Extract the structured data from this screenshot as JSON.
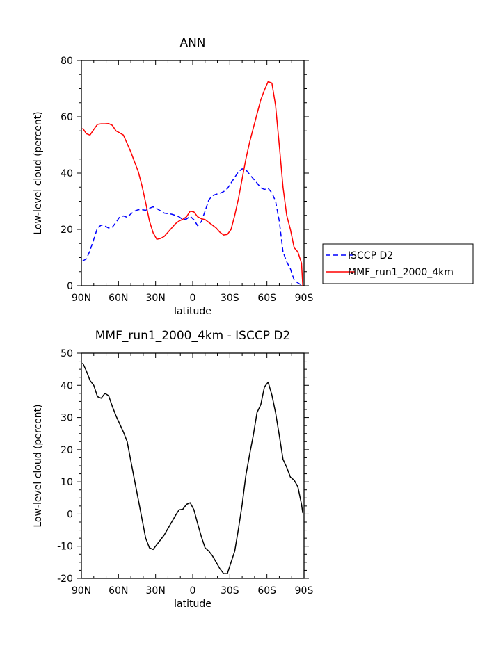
{
  "chart_data": [
    {
      "type": "line",
      "title": "ANN",
      "xlabel": "latitude",
      "ylabel": "Low-level cloud (percent)",
      "xlim": [
        90,
        -90
      ],
      "ylim": [
        0,
        80
      ],
      "x_tick_values": [
        90,
        60,
        30,
        0,
        -30,
        -60,
        -90
      ],
      "x_tick_labels": [
        "90N",
        "60N",
        "30N",
        "0",
        "30S",
        "60S",
        "90S"
      ],
      "y_ticks": [
        0,
        20,
        40,
        60,
        80
      ],
      "grid": false,
      "legend_position": "right",
      "series": [
        {
          "name": "ISCCP D2",
          "color": "#0000ff",
          "dash": "dashed",
          "x": [
            89,
            86,
            83,
            80,
            77,
            74,
            71,
            68,
            65,
            62,
            59,
            56,
            53,
            50,
            47,
            44,
            41,
            38,
            35,
            32,
            29,
            26,
            23,
            20,
            17,
            14,
            11,
            8,
            5,
            2,
            -1,
            -4,
            -7,
            -10,
            -13,
            -16,
            -19,
            -22,
            -25,
            -28,
            -31,
            -34,
            -37,
            -40,
            -43,
            -46,
            -49,
            -52,
            -55,
            -58,
            -61,
            -64,
            -67,
            -70,
            -73,
            -76,
            -79,
            -82,
            -85,
            -88,
            -89
          ],
          "y": [
            8.8,
            9.5,
            12.5,
            16.5,
            20.5,
            21.5,
            21.2,
            20.5,
            20.8,
            22.5,
            24.5,
            24.8,
            24.3,
            25.5,
            26.5,
            27.0,
            27.0,
            26.8,
            27.5,
            28.0,
            27.4,
            26.6,
            25.8,
            25.6,
            25.4,
            25.0,
            24.5,
            23.5,
            23.7,
            24.7,
            23.4,
            21.3,
            22.8,
            26.5,
            30.5,
            32.0,
            32.5,
            32.8,
            33.4,
            34.5,
            36.5,
            38.5,
            40.5,
            41.5,
            41.2,
            39.5,
            38.0,
            36.5,
            34.8,
            34.2,
            34.6,
            33.0,
            30.0,
            23.0,
            12.0,
            8.5,
            6.0,
            2.0,
            1.0,
            0.2,
            0.0
          ]
        },
        {
          "name": "MMF_run1_2000_4km",
          "color": "#ff0000",
          "dash": "solid",
          "x": [
            89,
            86,
            83,
            80,
            77,
            74,
            71,
            68,
            65,
            62,
            59,
            56,
            53,
            50,
            47,
            44,
            41,
            38,
            35,
            32,
            29,
            26,
            23,
            20,
            17,
            14,
            11,
            8,
            5,
            2,
            -1,
            -4,
            -7,
            -10,
            -13,
            -16,
            -19,
            -22,
            -25,
            -28,
            -31,
            -34,
            -37,
            -40,
            -43,
            -46,
            -49,
            -52,
            -55,
            -58,
            -61,
            -64,
            -67,
            -70,
            -73,
            -76,
            -79,
            -82,
            -85,
            -88,
            -89
          ],
          "y": [
            56.0,
            54.0,
            53.5,
            55.5,
            57.3,
            57.5,
            57.5,
            57.6,
            57.0,
            55.0,
            54.3,
            53.5,
            50.5,
            47.5,
            44.0,
            40.5,
            35.5,
            29.5,
            23.0,
            18.8,
            16.5,
            16.8,
            17.5,
            19.0,
            20.5,
            22.0,
            23.0,
            23.6,
            24.5,
            26.5,
            26.2,
            24.5,
            23.8,
            23.5,
            22.5,
            21.5,
            20.5,
            19.0,
            18.0,
            18.2,
            20.0,
            25.0,
            31.0,
            38.0,
            45.0,
            51.0,
            56.0,
            61.0,
            66.0,
            69.5,
            72.5,
            72.0,
            64.0,
            50.0,
            35.0,
            25.0,
            20.0,
            13.5,
            12.0,
            8.0,
            0.0
          ]
        }
      ]
    },
    {
      "type": "line",
      "title": "MMF_run1_2000_4km - ISCCP D2",
      "xlabel": "latitude",
      "ylabel": "Low-level cloud (percent)",
      "xlim": [
        90,
        -90
      ],
      "ylim": [
        -20,
        50
      ],
      "x_tick_values": [
        90,
        60,
        30,
        0,
        -30,
        -60,
        -90
      ],
      "x_tick_labels": [
        "90N",
        "60N",
        "30N",
        "0",
        "30S",
        "60S",
        "90S"
      ],
      "y_ticks": [
        -20,
        -10,
        0,
        10,
        20,
        30,
        40,
        50
      ],
      "grid": false,
      "series": [
        {
          "color": "#000000",
          "dash": "solid",
          "x": [
            89,
            86,
            83,
            80,
            77,
            74,
            71,
            68,
            65,
            62,
            59,
            56,
            53,
            50,
            47,
            44,
            41,
            38,
            35,
            32,
            29,
            26,
            23,
            20,
            17,
            14,
            11,
            8,
            5,
            2,
            -1,
            -4,
            -7,
            -10,
            -13,
            -16,
            -19,
            -22,
            -25,
            -28,
            -31,
            -34,
            -37,
            -40,
            -43,
            -46,
            -49,
            -52,
            -55,
            -58,
            -61,
            -64,
            -67,
            -70,
            -73,
            -76,
            -79,
            -82,
            -85,
            -88,
            -89
          ],
          "y": [
            47.0,
            44.5,
            41.5,
            40.0,
            36.5,
            36.0,
            37.5,
            36.8,
            33.5,
            30.5,
            28.0,
            25.5,
            22.5,
            16.5,
            10.5,
            4.5,
            -1.5,
            -7.5,
            -10.5,
            -11.0,
            -9.5,
            -8.0,
            -6.5,
            -4.5,
            -2.5,
            -0.5,
            1.3,
            1.5,
            3.0,
            3.5,
            1.3,
            -3.0,
            -7.0,
            -10.5,
            -11.5,
            -13.0,
            -15.0,
            -17.0,
            -18.5,
            -18.5,
            -15.0,
            -11.5,
            -4.5,
            3.0,
            12.0,
            18.5,
            24.5,
            31.5,
            34.0,
            39.5,
            41.0,
            37.0,
            31.5,
            24.5,
            17.0,
            14.5,
            11.5,
            10.5,
            8.5,
            3.0,
            0.3
          ]
        }
      ]
    }
  ]
}
